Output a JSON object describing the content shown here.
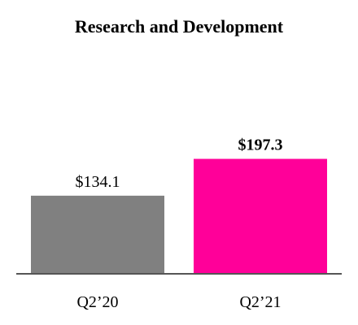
{
  "chart_data": {
    "type": "bar",
    "title": "Research and Development",
    "categories": [
      "Q2’20",
      "Q2’21"
    ],
    "values": [
      134.1,
      197.3
    ],
    "data_labels": [
      "$134.1",
      "$197.3"
    ],
    "bold_labels": [
      false,
      true
    ],
    "colors": [
      "#808080",
      "#FF0099"
    ],
    "axis_color": "#555555",
    "ylim": [
      0,
      470
    ],
    "grid": false,
    "legend": "none",
    "xlabel": "",
    "ylabel": ""
  }
}
